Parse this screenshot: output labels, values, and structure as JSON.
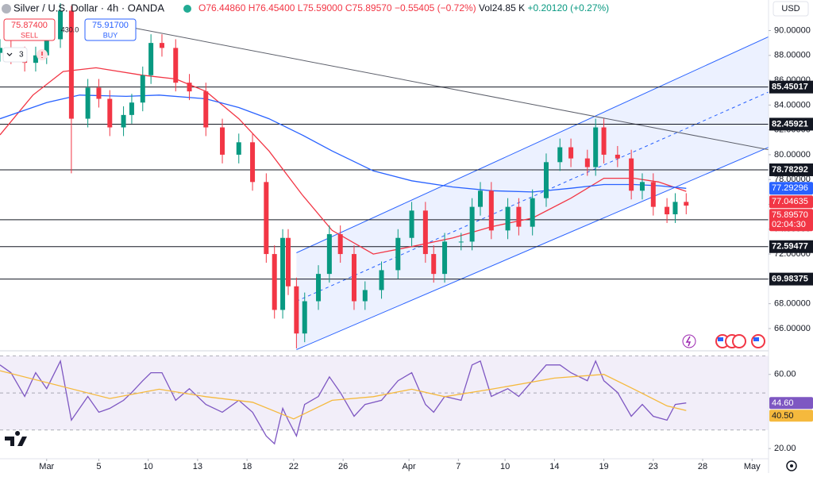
{
  "header": {
    "title": "Silver / U.S. Dollar · 4h · OANDA",
    "open": "O76.44860",
    "high": "H76.45400",
    "low": "L75.59000",
    "close": "C75.89570",
    "change": "−0.55405 (−0.72%)",
    "volume": "Vol24.85 K",
    "volume_change": "+0.20120 (+0.27%)",
    "sell_price": "75.87400",
    "sell_label": "SELL",
    "buy_price": "75.91700",
    "buy_label": "BUY",
    "spread_note": "430.0",
    "indicator_count": "3",
    "currency": "USD"
  },
  "chart_data": [
    {
      "type": "candlestick",
      "xlim": [
        0,
        280
      ],
      "ylim": [
        64.27,
        92.46
      ],
      "x": [
        0,
        4,
        9,
        13,
        17,
        22,
        26,
        32,
        36,
        40,
        45,
        48,
        52,
        55,
        59,
        64,
        69,
        75,
        81,
        87,
        92,
        97,
        100,
        103,
        105,
        108,
        111,
        116,
        120,
        124,
        129,
        133,
        139,
        145,
        150,
        155,
        158,
        162,
        168,
        172,
        175,
        179,
        185,
        189,
        194,
        199,
        204,
        208,
        214,
        217,
        220,
        225,
        230,
        234,
        238,
        243,
        246,
        250
      ],
      "open": [
        88.2,
        88.6,
        88.0,
        87.4,
        88.0,
        89.3,
        91.6,
        82.9,
        85.4,
        84.5,
        82.2,
        83.2,
        84.2,
        86.4,
        89.0,
        88.6,
        85.8,
        85.1,
        82.2,
        80.0,
        81.0,
        77.8,
        72.0,
        67.5,
        73.3,
        69.4,
        65.6,
        68.2,
        70.4,
        73.6,
        72.0,
        68.2,
        69.1,
        70.7,
        73.3,
        75.5,
        72.0,
        70.4,
        73.0,
        73.0,
        75.8,
        77.1,
        73.9,
        75.8,
        74.2,
        76.5,
        79.4,
        80.6,
        79.7,
        79.0,
        82.2,
        80.0,
        79.7,
        77.1,
        77.8,
        75.8,
        75.2,
        76.2
      ],
      "high": [
        89.3,
        89.3,
        88.7,
        88.7,
        90.0,
        92.2,
        92.0,
        86.1,
        86.1,
        85.2,
        83.9,
        84.9,
        87.1,
        89.7,
        89.7,
        89.3,
        86.5,
        85.8,
        82.9,
        81.7,
        81.7,
        78.5,
        72.7,
        74.0,
        74.0,
        70.1,
        68.9,
        71.1,
        74.3,
        74.3,
        72.7,
        69.8,
        71.4,
        74.0,
        76.2,
        76.2,
        72.7,
        73.7,
        73.7,
        76.5,
        77.8,
        77.8,
        76.5,
        76.5,
        77.2,
        80.1,
        81.3,
        81.3,
        80.4,
        82.9,
        82.9,
        80.7,
        80.4,
        78.5,
        78.5,
        76.5,
        76.9,
        76.9
      ],
      "low": [
        87.5,
        87.3,
        86.7,
        86.7,
        87.3,
        88.6,
        78.5,
        82.2,
        83.8,
        81.5,
        81.5,
        82.5,
        83.5,
        85.7,
        87.9,
        85.1,
        84.4,
        81.5,
        79.3,
        79.3,
        77.1,
        71.3,
        66.8,
        66.8,
        68.7,
        64.4,
        64.9,
        67.5,
        69.7,
        71.3,
        67.5,
        67.5,
        68.4,
        70.0,
        72.6,
        71.3,
        69.7,
        69.7,
        72.3,
        72.3,
        75.1,
        73.2,
        73.2,
        73.5,
        73.5,
        75.8,
        78.7,
        79.0,
        78.3,
        78.3,
        79.3,
        79.0,
        76.4,
        76.4,
        75.1,
        74.5,
        74.5,
        75.2
      ],
      "close": [
        88.6,
        88.0,
        87.4,
        88.0,
        89.3,
        91.6,
        82.9,
        85.4,
        84.5,
        82.2,
        83.2,
        84.2,
        86.4,
        89.0,
        88.6,
        85.8,
        85.1,
        82.2,
        80.0,
        81.0,
        77.8,
        72.0,
        67.5,
        73.3,
        69.4,
        65.6,
        68.2,
        70.4,
        73.6,
        72.0,
        68.2,
        69.1,
        70.7,
        73.3,
        75.5,
        72.0,
        70.4,
        73.0,
        73.0,
        75.8,
        77.1,
        73.9,
        75.8,
        74.2,
        76.5,
        79.4,
        80.6,
        79.7,
        79.0,
        82.2,
        80.0,
        79.7,
        77.1,
        77.8,
        75.8,
        75.2,
        76.2,
        75.9
      ],
      "up_color": "#089981",
      "down_color": "#f23645",
      "series": [
        {
          "color": "#f23645",
          "x": [
            0,
            12,
            23,
            35,
            52,
            64,
            75,
            87,
            98,
            110,
            121,
            136,
            150,
            165,
            179,
            194,
            208,
            220,
            231,
            240,
            250
          ],
          "values": [
            81.6,
            84.8,
            86.7,
            87.0,
            86.4,
            86.1,
            85.1,
            82.9,
            80.3,
            76.8,
            73.9,
            72.0,
            72.6,
            73.3,
            74.2,
            74.9,
            76.5,
            78.1,
            78.1,
            77.8,
            77.04635
          ]
        },
        {
          "color": "#2962ff",
          "x": [
            0,
            17,
            29,
            46,
            58,
            75,
            87,
            98,
            110,
            121,
            136,
            150,
            165,
            179,
            194,
            208,
            220,
            231,
            240,
            250
          ],
          "values": [
            82.9,
            84.2,
            84.8,
            84.7,
            84.8,
            84.5,
            83.8,
            82.9,
            81.6,
            80.3,
            78.7,
            77.9,
            77.4,
            77.1,
            77.0,
            77.3,
            77.6,
            77.6,
            77.5,
            77.29296
          ]
        }
      ],
      "levels": [
        85.45017,
        82.45921,
        78.78292,
        74.76001,
        72.59477,
        69.98375
      ],
      "trendline": {
        "x": [
          49,
          280
        ],
        "values": [
          90.2,
          80.4
        ]
      },
      "channel": {
        "x": [
          108,
          280
        ],
        "upper": [
          72.1,
          89.5
        ],
        "lower": [
          64.3,
          80.6
        ]
      },
      "price_tag": {
        "value": 75.8957,
        "label": "75.89570"
      },
      "countdown": "02:04:30",
      "yticks": [
        {
          "value": 66,
          "label": "66.00000"
        },
        {
          "value": 68,
          "label": "68.00000"
        },
        {
          "value": 70,
          "label": "70.00000"
        },
        {
          "value": 72,
          "label": "72.00000"
        },
        {
          "value": 74,
          "label": "74.00000"
        },
        {
          "value": 76,
          "label": "76.00000"
        },
        {
          "value": 78,
          "label": "78.00000"
        },
        {
          "value": 80,
          "label": "80.00000"
        },
        {
          "value": 82,
          "label": "82.00000"
        },
        {
          "value": 84,
          "label": "84.00000"
        },
        {
          "value": 86,
          "label": "86.00000"
        },
        {
          "value": 88,
          "label": "88.00000"
        },
        {
          "value": 90,
          "label": "90.00000"
        }
      ],
      "xticks": [
        {
          "value": 17,
          "label": "Mar"
        },
        {
          "value": 36,
          "label": "5"
        },
        {
          "value": 54,
          "label": "10"
        },
        {
          "value": 72,
          "label": "13"
        },
        {
          "value": 90,
          "label": "18"
        },
        {
          "value": 107,
          "label": "22"
        },
        {
          "value": 125,
          "label": "26"
        },
        {
          "value": 149,
          "label": "Apr"
        },
        {
          "value": 167,
          "label": "7"
        },
        {
          "value": 184,
          "label": "10"
        },
        {
          "value": 202,
          "label": "14"
        },
        {
          "value": 220,
          "label": "19"
        },
        {
          "value": 238,
          "label": "23"
        },
        {
          "value": 256,
          "label": "28"
        },
        {
          "value": 274,
          "label": "May"
        }
      ]
    },
    {
      "type": "line",
      "xlim": [
        0,
        280
      ],
      "ylim": [
        14.5,
        72.3
      ],
      "band": [
        30,
        70
      ],
      "guides": [
        30,
        50,
        70
      ],
      "band_color": "#7e57c2",
      "yticks": [
        {
          "value": 20,
          "label": "20.00"
        },
        {
          "value": 60,
          "label": "60.00"
        }
      ],
      "series": [
        {
          "color": "#7e57c2",
          "x": [
            0,
            4,
            9,
            13,
            17,
            22,
            26,
            32,
            36,
            40,
            45,
            48,
            52,
            55,
            59,
            64,
            69,
            75,
            81,
            87,
            92,
            97,
            100,
            103,
            105,
            108,
            111,
            116,
            120,
            124,
            129,
            133,
            139,
            145,
            150,
            155,
            158,
            162,
            168,
            172,
            175,
            179,
            185,
            189,
            194,
            199,
            204,
            208,
            214,
            217,
            220,
            225,
            230,
            234,
            238,
            243,
            246,
            250
          ],
          "values": [
            65.1,
            60.9,
            48.1,
            60.9,
            52.3,
            67.2,
            35.3,
            48.1,
            39.6,
            41.7,
            46.0,
            50.2,
            56.6,
            60.9,
            60.9,
            46.0,
            52.3,
            43.8,
            39.6,
            46.0,
            39.6,
            26.8,
            22.6,
            41.7,
            35.3,
            26.8,
            43.8,
            48.1,
            58.7,
            50.2,
            37.4,
            43.8,
            46.0,
            56.6,
            60.9,
            43.8,
            39.6,
            48.1,
            46.0,
            65.1,
            67.2,
            48.1,
            52.3,
            48.1,
            56.6,
            65.1,
            65.1,
            60.9,
            56.6,
            67.2,
            56.6,
            50.2,
            37.4,
            43.8,
            37.4,
            35.3,
            43.8,
            44.6
          ],
          "tag": {
            "value": 44.6,
            "label": "44.60"
          }
        },
        {
          "color": "#f5b93d",
          "x": [
            0,
            40,
            58,
            75,
            92,
            107,
            121,
            136,
            150,
            162,
            179,
            202,
            220,
            231,
            243,
            250
          ],
          "values": [
            62,
            47,
            52,
            48,
            45,
            36,
            46,
            48,
            52,
            48,
            52,
            58,
            60,
            52,
            43,
            40.5
          ],
          "tag": {
            "value": 40.5,
            "label": "40.50"
          }
        }
      ]
    }
  ]
}
